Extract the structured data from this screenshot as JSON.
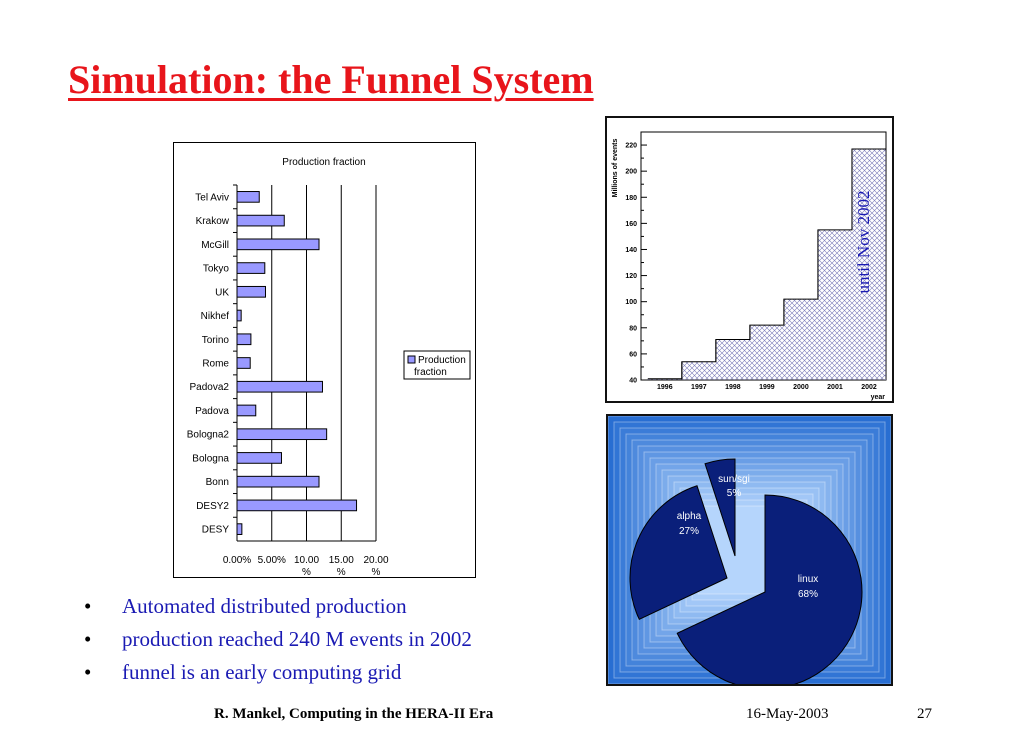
{
  "slide": {
    "title": "Simulation: the Funnel System",
    "bullets": [
      "Automated distributed production",
      "production reached 240 M events in 2002",
      "funnel is an early computing grid"
    ],
    "footer": {
      "author": "R. Mankel, Computing in the HERA-II Era",
      "date": "16-May-2003",
      "page": "27"
    }
  },
  "chart_data": [
    {
      "type": "bar",
      "orientation": "horizontal",
      "title": "Production fraction",
      "categories": [
        "Tel Aviv",
        "Krakow",
        "McGill",
        "Tokyo",
        "UK",
        "Nikhef",
        "Torino",
        "Rome",
        "Padova2",
        "Padova",
        "Bologna2",
        "Bologna",
        "Bonn",
        "DESY2",
        "DESY"
      ],
      "series": [
        {
          "name": "Production fraction",
          "values": [
            3.2,
            6.8,
            11.8,
            4.0,
            4.1,
            0.6,
            2.0,
            1.9,
            12.3,
            2.7,
            12.9,
            6.4,
            11.8,
            17.2,
            0.7
          ]
        }
      ],
      "x_ticks": [
        "0.00%",
        "5.00%",
        "10.00 %",
        "15.00 %",
        "20.00 %"
      ],
      "xlim": [
        0,
        20
      ],
      "grid": "vertical",
      "legend": "right",
      "color": "#9999ff"
    },
    {
      "type": "line",
      "style": "step",
      "ylabel": "Millions of events",
      "xlabel": "year",
      "x": [
        "1996",
        "1997",
        "1998",
        "1999",
        "2000",
        "2001",
        "2002"
      ],
      "steps": [
        {
          "x0": 1995.8,
          "x1": 1996.8,
          "y": 41
        },
        {
          "x0": 1996.8,
          "x1": 1997.8,
          "y": 54
        },
        {
          "x0": 1997.8,
          "x1": 1998.8,
          "y": 71
        },
        {
          "x0": 1998.8,
          "x1": 1999.8,
          "y": 82
        },
        {
          "x0": 1999.8,
          "x1": 2000.8,
          "y": 102
        },
        {
          "x0": 2000.8,
          "x1": 2001.8,
          "y": 155
        },
        {
          "x0": 2001.8,
          "x1": 2002.8,
          "y": 217
        }
      ],
      "yticks": [
        40,
        60,
        80,
        100,
        120,
        140,
        160,
        180,
        200,
        220
      ],
      "ylim": [
        40,
        230
      ],
      "xlim": [
        1995.6,
        2002.8
      ],
      "annotation": "until Nov 2002",
      "annotation_color": "#1a1ab3"
    },
    {
      "type": "pie",
      "slices": [
        {
          "label": "linux",
          "value": 68,
          "text": "68%"
        },
        {
          "label": "alpha",
          "value": 27,
          "text": "27%"
        },
        {
          "label": "sun/sgi",
          "value": 5,
          "text": "5%"
        }
      ],
      "color": "#0a1f7a",
      "background": "#3f7fd8"
    }
  ]
}
